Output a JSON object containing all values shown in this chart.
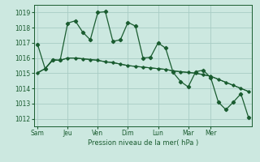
{
  "title": "",
  "xlabel": "Pression niveau de la mer( hPa )",
  "ylabel": "",
  "background_color": "#cce8e0",
  "grid_color": "#a8ccc4",
  "line_color": "#1a5c30",
  "tick_label_color": "#1a5c30",
  "axis_label_color": "#1a5c30",
  "ylim": [
    1011.5,
    1019.5
  ],
  "yticks": [
    1012,
    1013,
    1014,
    1015,
    1016,
    1017,
    1018,
    1019
  ],
  "day_labels": [
    "Sam",
    "Jeu",
    "Ven",
    "Dim",
    "Lun",
    "Mar",
    "Mer"
  ],
  "day_positions": [
    0,
    4,
    8,
    12,
    16,
    20,
    23
  ],
  "series1": [
    1016.9,
    1015.3,
    1015.9,
    1015.85,
    1018.3,
    1018.45,
    1017.7,
    1017.2,
    1019.0,
    1019.05,
    1017.1,
    1017.2,
    1018.35,
    1018.1,
    1016.0,
    1016.05,
    1017.0,
    1016.65,
    1015.05,
    1014.45,
    1014.1,
    1015.1,
    1015.2,
    1014.7,
    1013.1,
    1012.6,
    1013.1,
    1013.65,
    1012.1
  ],
  "series2": [
    1015.0,
    1015.3,
    1015.85,
    1015.85,
    1016.0,
    1016.0,
    1015.95,
    1015.9,
    1015.85,
    1015.75,
    1015.7,
    1015.6,
    1015.5,
    1015.45,
    1015.4,
    1015.35,
    1015.3,
    1015.25,
    1015.15,
    1015.1,
    1015.05,
    1015.0,
    1014.9,
    1014.8,
    1014.6,
    1014.4,
    1014.2,
    1014.0,
    1013.8
  ],
  "series3": [
    1015.05,
    1015.3,
    1015.85,
    1015.85,
    1016.0,
    1016.0,
    1015.95,
    1015.9,
    1015.85,
    1015.75,
    1015.7,
    1015.6,
    1015.5,
    1015.45,
    1015.4,
    1015.35,
    1015.3,
    1015.25,
    1015.15,
    1015.1,
    1015.05,
    1015.0,
    1014.9,
    1014.8,
    1014.6,
    1014.4,
    1014.2,
    1014.0,
    1013.8
  ]
}
